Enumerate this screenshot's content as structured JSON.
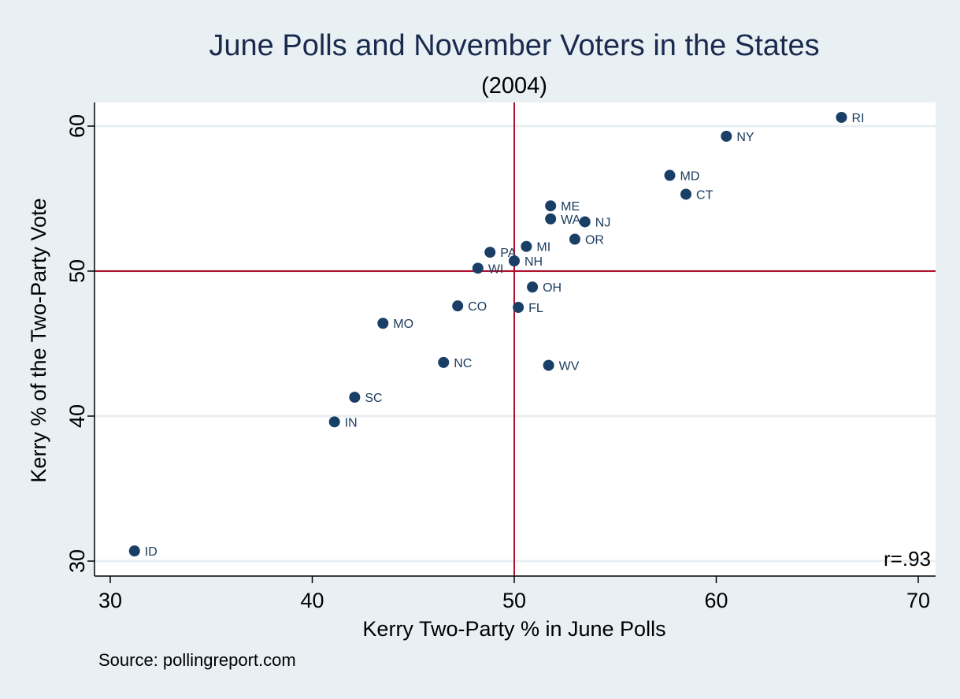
{
  "chart_data": {
    "type": "scatter",
    "title": "June Polls and November Voters in the States",
    "subtitle": "(2004)",
    "xlabel": "Kerry Two-Party % in June Polls",
    "ylabel": "Kerry % of the Two-Party Vote",
    "xlim": [
      30,
      70
    ],
    "ylim": [
      30,
      60
    ],
    "xticks": [
      30,
      40,
      50,
      60,
      70
    ],
    "yticks": [
      30,
      40,
      50,
      60
    ],
    "reference_lines": {
      "x": 50,
      "y": 50
    },
    "grid": "horizontal",
    "annotation": "r=.93",
    "source": "Source: pollingreport.com",
    "colors": {
      "background": "#e9f0f3",
      "plot": "#ffffff",
      "point": "#1a3f66",
      "refline": "#b0102b",
      "grid": "#e8eef2"
    },
    "points": [
      {
        "label": "RI",
        "x": 66.2,
        "y": 60.6
      },
      {
        "label": "NY",
        "x": 60.5,
        "y": 59.3
      },
      {
        "label": "MD",
        "x": 57.7,
        "y": 56.6
      },
      {
        "label": "CT",
        "x": 58.5,
        "y": 55.3
      },
      {
        "label": "ME",
        "x": 51.8,
        "y": 54.5
      },
      {
        "label": "WA",
        "x": 51.8,
        "y": 53.6
      },
      {
        "label": "NJ",
        "x": 53.5,
        "y": 53.4
      },
      {
        "label": "OR",
        "x": 53.0,
        "y": 52.2
      },
      {
        "label": "MI",
        "x": 50.6,
        "y": 51.7
      },
      {
        "label": "PA",
        "x": 48.8,
        "y": 51.3
      },
      {
        "label": "NH",
        "x": 50.0,
        "y": 50.7
      },
      {
        "label": "WI",
        "x": 48.2,
        "y": 50.2
      },
      {
        "label": "OH",
        "x": 50.9,
        "y": 48.9
      },
      {
        "label": "CO",
        "x": 47.2,
        "y": 47.6
      },
      {
        "label": "FL",
        "x": 50.2,
        "y": 47.5
      },
      {
        "label": "MO",
        "x": 43.5,
        "y": 46.4
      },
      {
        "label": "NC",
        "x": 46.5,
        "y": 43.7
      },
      {
        "label": "WV",
        "x": 51.7,
        "y": 43.5
      },
      {
        "label": "SC",
        "x": 42.1,
        "y": 41.3
      },
      {
        "label": "IN",
        "x": 41.1,
        "y": 39.6
      },
      {
        "label": "ID",
        "x": 31.2,
        "y": 30.7
      }
    ]
  }
}
